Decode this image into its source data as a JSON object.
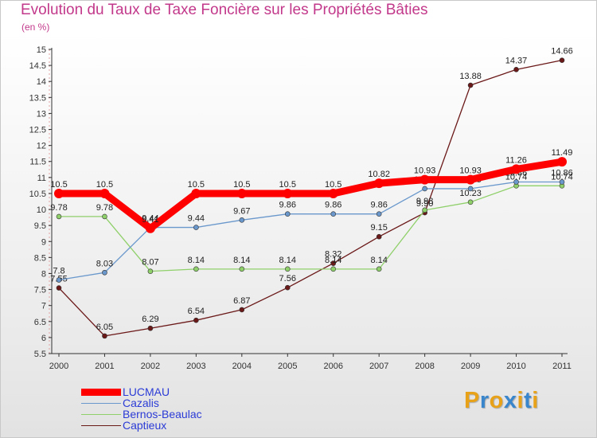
{
  "title": "Evolution du Taux de Taxe Foncière sur les Propriétés Bâties",
  "unit": "(en %)",
  "chart_data": {
    "type": "line",
    "title": "Evolution du Taux de Taxe Foncière sur les Propriétés Bâties",
    "ylabel": "(en %)",
    "xlabel": "",
    "ylim": [
      5.5,
      15
    ],
    "ystep": 0.5,
    "y_ticks": [
      "5.5",
      "6",
      "6.5",
      "7",
      "7.5",
      "8",
      "8.5",
      "9",
      "9.5",
      "10",
      "10.5",
      "11",
      "11.5",
      "12",
      "12.5",
      "13",
      "13.5",
      "14",
      "14.5",
      "15"
    ],
    "categories": [
      "2000",
      "2001",
      "2002",
      "2003",
      "2004",
      "2005",
      "2006",
      "2007",
      "2008",
      "2009",
      "2010",
      "2011"
    ],
    "series": [
      {
        "name": "Captieux",
        "color": "#6b1818",
        "values": [
          7.55,
          6.05,
          6.29,
          6.54,
          6.87,
          7.56,
          8.32,
          9.15,
          9.9,
          13.88,
          14.37,
          14.66
        ],
        "labels": [
          "7.55",
          "6.05",
          "6.29",
          "6.54",
          "6.87",
          "7.56",
          "8.32",
          "9.15",
          "9.90",
          "13.88",
          "14.37",
          "14.66"
        ]
      },
      {
        "name": "Bernos-Beaulac",
        "color": "#8fd06a",
        "values": [
          9.78,
          9.78,
          8.07,
          8.14,
          8.14,
          8.14,
          8.14,
          8.14,
          9.98,
          10.23,
          10.74,
          10.74
        ],
        "labels": [
          "9.78",
          "9.78",
          "8.07",
          "8.14",
          "8.14",
          "8.14",
          "8.14",
          "8.14",
          "9.98",
          "10.23",
          "10.74",
          "10.74"
        ]
      },
      {
        "name": "Cazalis",
        "color": "#6a98cc",
        "values": [
          7.8,
          8.03,
          9.44,
          9.44,
          9.67,
          9.86,
          9.86,
          9.86,
          10.65,
          10.65,
          10.86,
          10.86
        ],
        "labels": [
          "7.8",
          "8.03",
          "9.44",
          "9.44",
          "9.67",
          "9.86",
          "9.86",
          "9.86",
          "10.65",
          "10.65",
          "10.86",
          "10.86"
        ]
      },
      {
        "name": "LUCMAU",
        "color": "#ff0000",
        "values": [
          10.5,
          10.5,
          9.41,
          10.5,
          10.5,
          10.5,
          10.5,
          10.82,
          10.93,
          10.93,
          11.26,
          11.49
        ],
        "labels": [
          "10.5",
          "10.5",
          "9.41",
          "10.5",
          "10.5",
          "10.5",
          "10.5",
          "10.82",
          "10.93",
          "10.93",
          "11.26",
          "11.49"
        ]
      }
    ],
    "legend": [
      {
        "name": "LUCMAU",
        "color": "#ff0000",
        "thick": true
      },
      {
        "name": "Cazalis",
        "color": "#6a98cc",
        "thick": false
      },
      {
        "name": "Bernos-Beaulac",
        "color": "#8fd06a",
        "thick": false
      },
      {
        "name": "Captieux",
        "color": "#6b1818",
        "thick": false
      }
    ],
    "grid": false,
    "legend_position": "bottom-left"
  },
  "logo": {
    "text": "Proxiti",
    "letters": [
      {
        "ch": "P",
        "color": "#e8a21a"
      },
      {
        "ch": "r",
        "color": "#3a86cc"
      },
      {
        "ch": "o",
        "color": "#e8a21a"
      },
      {
        "ch": "x",
        "color": "#3a86cc"
      },
      {
        "ch": "i",
        "color": "#e8a21a"
      },
      {
        "ch": "t",
        "color": "#3a86cc"
      },
      {
        "ch": "i",
        "color": "#e8a21a"
      }
    ]
  }
}
